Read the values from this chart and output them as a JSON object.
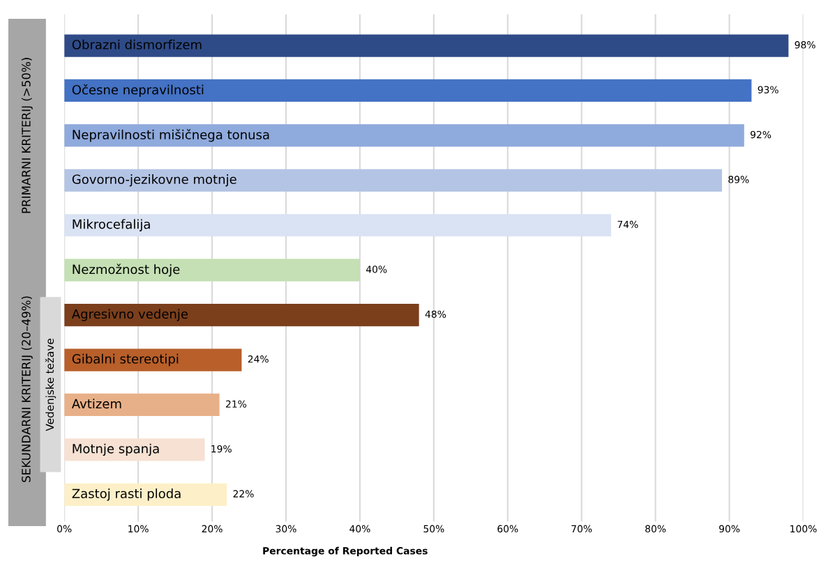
{
  "chart_data": {
    "type": "bar",
    "orientation": "horizontal",
    "categories": [
      "Obrazni dismorfizem",
      "Očesne nepravilnosti",
      "Nepravilnosti mišičnega tonusa",
      "Govorno-jezikovne motnje",
      "Mikrocefalija",
      "Nezmožnost hoje",
      "Agresivno vedenje",
      "Gibalni stereotipi",
      "Avtizem",
      "Motnje spanja",
      "Zastoj rasti ploda"
    ],
    "values": [
      98,
      93,
      92,
      89,
      74,
      40,
      48,
      24,
      21,
      19,
      22
    ],
    "colors": [
      "#2f4b87",
      "#4472c4",
      "#8faadc",
      "#b4c4e4",
      "#dae3f3",
      "#c5e0b4",
      "#7b3f1c",
      "#b85f2a",
      "#e8b088",
      "#f6e1d3",
      "#fdf0c8"
    ],
    "value_labels": [
      "98%",
      "93%",
      "92%",
      "89%",
      "74%",
      "40%",
      "48%",
      "24%",
      "21%",
      "19%",
      "22%"
    ],
    "xlabel": "Percentage of Reported Cases",
    "xlim": [
      0,
      100
    ],
    "xticks": [
      {
        "value": 0,
        "label": "0%"
      },
      {
        "value": 10,
        "label": "10%"
      },
      {
        "value": 20,
        "label": "20%"
      },
      {
        "value": 30,
        "label": "30%"
      },
      {
        "value": 40,
        "label": "40%"
      },
      {
        "value": 50,
        "label": "50%"
      },
      {
        "value": 60,
        "label": "60%"
      },
      {
        "value": 70,
        "label": "70%"
      },
      {
        "value": 80,
        "label": "80%"
      },
      {
        "value": 90,
        "label": "90%"
      },
      {
        "value": 100,
        "label": "100%"
      }
    ],
    "annotations": [
      "PRIMARNI KRITERIJ (>50%)",
      "SEKUNDARNI KRITERIJ (20–49%)",
      "Vedenjske težave"
    ],
    "grid": "x",
    "tick_labels": "x"
  }
}
